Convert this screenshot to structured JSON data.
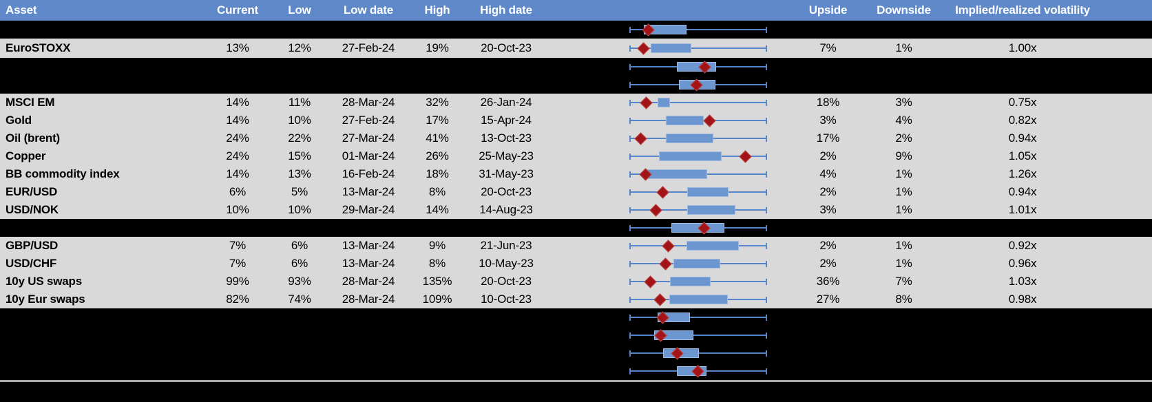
{
  "header": {
    "columns": [
      "Asset",
      "Current",
      "Low",
      "Low date",
      "High",
      "High date",
      "",
      "Upside",
      "Downside",
      "Implied/realized volatility"
    ]
  },
  "colors": {
    "header_bg": "#5E88C8",
    "header_text": "#FFFFFF",
    "row_gray": "#D9D9D9",
    "row_hidden": "#000000",
    "box_fill": "#6C96CF",
    "box_border": "#9FB9E0",
    "whisker": "#5585C8",
    "marker_red": "#A21418",
    "divider": "#A9A9A9"
  },
  "rows": [
    {
      "type": "hidden",
      "asset": "",
      "current": "",
      "low": "",
      "low_date": "",
      "high": "",
      "high_date": "",
      "upside": "",
      "downside": "",
      "implied_realized": "",
      "plot": {
        "box_low": 0.105,
        "box_high": 0.415,
        "marker": 0.135
      }
    },
    {
      "type": "data",
      "asset": "EuroSTOXX",
      "current": "13%",
      "low": "12%",
      "low_date": "27-Feb-24",
      "high": "19%",
      "high_date": "20-Oct-23",
      "upside": "7%",
      "downside": "1%",
      "implied_realized": "1.00x",
      "plot": {
        "box_low": 0.155,
        "box_high": 0.45,
        "marker": 0.1
      }
    },
    {
      "type": "hidden",
      "asset": "",
      "current": "",
      "low": "",
      "low_date": "",
      "high": "",
      "high_date": "",
      "upside": "",
      "downside": "",
      "implied_realized": "",
      "plot": {
        "box_low": 0.345,
        "box_high": 0.63,
        "marker": 0.545
      }
    },
    {
      "type": "hidden",
      "asset": "",
      "current": "",
      "low": "",
      "low_date": "",
      "high": "",
      "high_date": "",
      "upside": "",
      "downside": "",
      "implied_realized": "",
      "plot": {
        "box_low": 0.36,
        "box_high": 0.625,
        "marker": 0.485
      }
    },
    {
      "type": "data",
      "asset": "MSCI EM",
      "current": "14%",
      "low": "11%",
      "low_date": "28-Mar-24",
      "high": "32%",
      "high_date": "26-Jan-24",
      "upside": "18%",
      "downside": "3%",
      "implied_realized": "0.75x",
      "plot": {
        "box_low": 0.205,
        "box_high": 0.295,
        "marker": 0.12
      }
    },
    {
      "type": "data",
      "asset": "Gold",
      "current": "14%",
      "low": "10%",
      "low_date": "27-Feb-24",
      "high": "17%",
      "high_date": "15-Apr-24",
      "upside": "3%",
      "downside": "4%",
      "implied_realized": "0.82x",
      "plot": {
        "box_low": 0.265,
        "box_high": 0.54,
        "marker": 0.58
      }
    },
    {
      "type": "data",
      "asset": "Oil (brent)",
      "current": "24%",
      "low": "22%",
      "low_date": "27-Mar-24",
      "high": "41%",
      "high_date": "13-Oct-23",
      "upside": "17%",
      "downside": "2%",
      "implied_realized": "0.94x",
      "plot": {
        "box_low": 0.265,
        "box_high": 0.61,
        "marker": 0.08
      }
    },
    {
      "type": "data",
      "asset": "Copper",
      "current": "24%",
      "low": "15%",
      "low_date": "01-Mar-24",
      "high": "26%",
      "high_date": "25-May-23",
      "upside": "2%",
      "downside": "9%",
      "implied_realized": "1.05x",
      "plot": {
        "box_low": 0.215,
        "box_high": 0.67,
        "marker": 0.84
      }
    },
    {
      "type": "data",
      "asset": "BB commodity index",
      "current": "14%",
      "low": "13%",
      "low_date": "16-Feb-24",
      "high": "18%",
      "high_date": "31-May-23",
      "upside": "4%",
      "downside": "1%",
      "implied_realized": "1.26x",
      "plot": {
        "box_low": 0.13,
        "box_high": 0.565,
        "marker": 0.115
      }
    },
    {
      "type": "data",
      "asset": "EUR/USD",
      "current": "6%",
      "low": "5%",
      "low_date": "13-Mar-24",
      "high": "8%",
      "high_date": "20-Oct-23",
      "upside": "2%",
      "downside": "1%",
      "implied_realized": "0.94x",
      "plot": {
        "box_low": 0.42,
        "box_high": 0.72,
        "marker": 0.24
      }
    },
    {
      "type": "data",
      "asset": "USD/NOK",
      "current": "10%",
      "low": "10%",
      "low_date": "29-Mar-24",
      "high": "14%",
      "high_date": "14-Aug-23",
      "upside": "3%",
      "downside": "1%",
      "implied_realized": "1.01x",
      "plot": {
        "box_low": 0.42,
        "box_high": 0.77,
        "marker": 0.19
      }
    },
    {
      "type": "hidden",
      "asset": "",
      "current": "",
      "low": "",
      "low_date": "",
      "high": "",
      "high_date": "",
      "upside": "",
      "downside": "",
      "implied_realized": "",
      "plot": {
        "box_low": 0.305,
        "box_high": 0.69,
        "marker": 0.54
      }
    },
    {
      "type": "data",
      "asset": "GBP/USD",
      "current": "7%",
      "low": "6%",
      "low_date": "13-Mar-24",
      "high": "9%",
      "high_date": "21-Jun-23",
      "upside": "2%",
      "downside": "1%",
      "implied_realized": "0.92x",
      "plot": {
        "box_low": 0.415,
        "box_high": 0.795,
        "marker": 0.28
      }
    },
    {
      "type": "data",
      "asset": "USD/CHF",
      "current": "7%",
      "low": "6%",
      "low_date": "13-Mar-24",
      "high": "8%",
      "high_date": "10-May-23",
      "upside": "2%",
      "downside": "1%",
      "implied_realized": "0.96x",
      "plot": {
        "box_low": 0.32,
        "box_high": 0.66,
        "marker": 0.26
      }
    },
    {
      "type": "data",
      "asset": "10y US swaps",
      "current": "99%",
      "low": "93%",
      "low_date": "28-Mar-24",
      "high": "135%",
      "high_date": "20-Oct-23",
      "upside": "36%",
      "downside": "7%",
      "implied_realized": "1.03x",
      "plot": {
        "box_low": 0.295,
        "box_high": 0.59,
        "marker": 0.15
      }
    },
    {
      "type": "data",
      "asset": "10y Eur swaps",
      "current": "82%",
      "low": "74%",
      "low_date": "28-Mar-24",
      "high": "109%",
      "high_date": "10-Oct-23",
      "upside": "27%",
      "downside": "8%",
      "implied_realized": "0.98x",
      "plot": {
        "box_low": 0.29,
        "box_high": 0.715,
        "marker": 0.22
      }
    },
    {
      "type": "hidden",
      "asset": "",
      "current": "",
      "low": "",
      "low_date": "",
      "high": "",
      "high_date": "",
      "upside": "",
      "downside": "",
      "implied_realized": "",
      "plot": {
        "box_low": 0.205,
        "box_high": 0.44,
        "marker": 0.24
      }
    },
    {
      "type": "hidden",
      "asset": "",
      "current": "",
      "low": "",
      "low_date": "",
      "high": "",
      "high_date": "",
      "upside": "",
      "downside": "",
      "implied_realized": "",
      "plot": {
        "box_low": 0.18,
        "box_high": 0.465,
        "marker": 0.225
      }
    },
    {
      "type": "hidden",
      "asset": "",
      "current": "",
      "low": "",
      "low_date": "",
      "high": "",
      "high_date": "",
      "upside": "",
      "downside": "",
      "implied_realized": "",
      "plot": {
        "box_low": 0.245,
        "box_high": 0.505,
        "marker": 0.345
      }
    },
    {
      "type": "hidden",
      "asset": "",
      "current": "",
      "low": "",
      "low_date": "",
      "high": "",
      "high_date": "",
      "upside": "",
      "downside": "",
      "implied_realized": "",
      "plot": {
        "box_low": 0.345,
        "box_high": 0.56,
        "marker": 0.495
      }
    }
  ],
  "chart_data": {
    "type": "boxplot",
    "orientation": "horizontal",
    "description": "Per-row 1y implied volatility range: whiskers span the 52-week low-high range (normalized 0-1), blue box is the interquartile band, red diamond is the current level.",
    "x_range_normalized": [
      0,
      1
    ],
    "grid": false,
    "legend": false,
    "series": [
      {
        "label": "(hidden row 1)",
        "whisker": [
          0,
          1
        ],
        "box": [
          0.105,
          0.415
        ],
        "marker": 0.135
      },
      {
        "label": "EuroSTOXX",
        "whisker": [
          0,
          1
        ],
        "box": [
          0.155,
          0.45
        ],
        "marker": 0.1
      },
      {
        "label": "(hidden row 2)",
        "whisker": [
          0,
          1
        ],
        "box": [
          0.345,
          0.63
        ],
        "marker": 0.545
      },
      {
        "label": "(hidden row 3)",
        "whisker": [
          0,
          1
        ],
        "box": [
          0.36,
          0.625
        ],
        "marker": 0.485
      },
      {
        "label": "MSCI EM",
        "whisker": [
          0,
          1
        ],
        "box": [
          0.205,
          0.295
        ],
        "marker": 0.12
      },
      {
        "label": "Gold",
        "whisker": [
          0,
          1
        ],
        "box": [
          0.265,
          0.54
        ],
        "marker": 0.58
      },
      {
        "label": "Oil (brent)",
        "whisker": [
          0,
          1
        ],
        "box": [
          0.265,
          0.61
        ],
        "marker": 0.08
      },
      {
        "label": "Copper",
        "whisker": [
          0,
          1
        ],
        "box": [
          0.215,
          0.67
        ],
        "marker": 0.84
      },
      {
        "label": "BB commodity index",
        "whisker": [
          0,
          1
        ],
        "box": [
          0.13,
          0.565
        ],
        "marker": 0.115
      },
      {
        "label": "EUR/USD",
        "whisker": [
          0,
          1
        ],
        "box": [
          0.42,
          0.72
        ],
        "marker": 0.24
      },
      {
        "label": "USD/NOK",
        "whisker": [
          0,
          1
        ],
        "box": [
          0.42,
          0.77
        ],
        "marker": 0.19
      },
      {
        "label": "(hidden row 4)",
        "whisker": [
          0,
          1
        ],
        "box": [
          0.305,
          0.69
        ],
        "marker": 0.54
      },
      {
        "label": "GBP/USD",
        "whisker": [
          0,
          1
        ],
        "box": [
          0.415,
          0.795
        ],
        "marker": 0.28
      },
      {
        "label": "USD/CHF",
        "whisker": [
          0,
          1
        ],
        "box": [
          0.32,
          0.66
        ],
        "marker": 0.26
      },
      {
        "label": "10y US swaps",
        "whisker": [
          0,
          1
        ],
        "box": [
          0.295,
          0.59
        ],
        "marker": 0.15
      },
      {
        "label": "10y Eur swaps",
        "whisker": [
          0,
          1
        ],
        "box": [
          0.29,
          0.715
        ],
        "marker": 0.22
      },
      {
        "label": "(hidden row 5)",
        "whisker": [
          0,
          1
        ],
        "box": [
          0.205,
          0.44
        ],
        "marker": 0.24
      },
      {
        "label": "(hidden row 6)",
        "whisker": [
          0,
          1
        ],
        "box": [
          0.18,
          0.465
        ],
        "marker": 0.225
      },
      {
        "label": "(hidden row 7)",
        "whisker": [
          0,
          1
        ],
        "box": [
          0.245,
          0.505
        ],
        "marker": 0.345
      },
      {
        "label": "(hidden row 8)",
        "whisker": [
          0,
          1
        ],
        "box": [
          0.345,
          0.56
        ],
        "marker": 0.495
      }
    ]
  }
}
